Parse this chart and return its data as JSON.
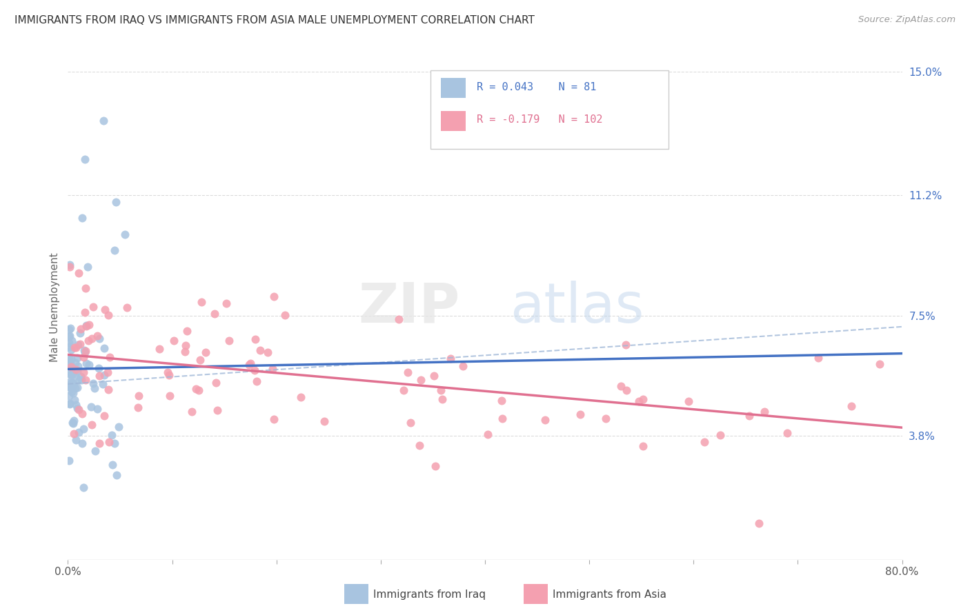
{
  "title": "IMMIGRANTS FROM IRAQ VS IMMIGRANTS FROM ASIA MALE UNEMPLOYMENT CORRELATION CHART",
  "source": "Source: ZipAtlas.com",
  "ylabel": "Male Unemployment",
  "x_min": 0.0,
  "x_max": 0.8,
  "y_min": 0.0,
  "y_max": 0.155,
  "y_tick_labels_right": [
    "15.0%",
    "11.2%",
    "7.5%",
    "3.8%"
  ],
  "y_tick_values_right": [
    0.15,
    0.112,
    0.075,
    0.038
  ],
  "legend_r1": "0.043",
  "legend_n1": "81",
  "legend_r2": "-0.179",
  "legend_n2": "102",
  "color_iraq": "#a8c4e0",
  "color_asia": "#f4a0b0",
  "color_iraq_line": "#4472c4",
  "color_asia_line": "#e07090",
  "color_trendline_dashed": "#a0b8d8",
  "color_text_blue": "#4472c4",
  "color_text_pink": "#e07090",
  "background_color": "#ffffff",
  "grid_color": "#cccccc"
}
